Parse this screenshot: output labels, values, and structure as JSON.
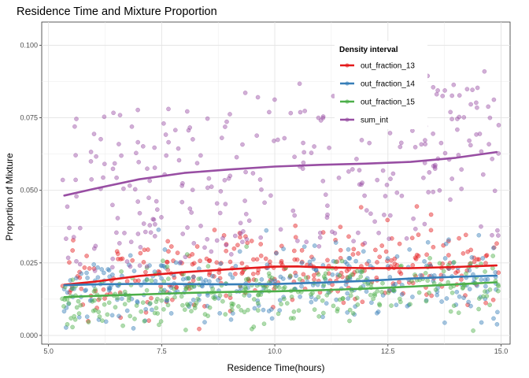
{
  "chart_data": {
    "type": "scatter",
    "title": "Residence Time and Mixture Proportion",
    "xlabel": "Residence Time(hours)",
    "ylabel": "Proportion of Mixture",
    "xlim": [
      4.85,
      15.2
    ],
    "ylim": [
      -0.003,
      0.108
    ],
    "x_ticks": [
      5.0,
      7.5,
      10.0,
      12.5,
      15.0
    ],
    "x_tick_labels": [
      "5.0",
      "7.5",
      "10.0",
      "12.5",
      "15.0"
    ],
    "y_ticks": [
      0.0,
      0.025,
      0.05,
      0.075,
      0.1
    ],
    "y_tick_labels": [
      "0.000",
      "0.025",
      "0.050",
      "0.075",
      "0.100"
    ],
    "grid": true,
    "legend": {
      "title": "Density interval",
      "placement": "top-right"
    },
    "series": [
      {
        "name": "out_fraction_13",
        "color": "#e41a1c",
        "points_mean": [
          [
            5.3,
            0.018
          ],
          [
            7.5,
            0.021
          ],
          [
            10.0,
            0.024
          ],
          [
            12.5,
            0.023
          ],
          [
            15.0,
            0.024
          ]
        ],
        "points_spread": 0.0065,
        "point_count": 300,
        "smooth": [
          [
            5.35,
            0.0175
          ],
          [
            6.0,
            0.0185
          ],
          [
            7.0,
            0.0205
          ],
          [
            8.0,
            0.0218
          ],
          [
            9.0,
            0.0228
          ],
          [
            10.0,
            0.0237
          ],
          [
            10.5,
            0.0238
          ],
          [
            11.0,
            0.0235
          ],
          [
            12.0,
            0.0232
          ],
          [
            13.0,
            0.0232
          ],
          [
            14.0,
            0.0236
          ],
          [
            14.9,
            0.0241
          ]
        ]
      },
      {
        "name": "out_fraction_14",
        "color": "#377eb8",
        "points_mean": [
          [
            5.3,
            0.017
          ],
          [
            10.0,
            0.018
          ],
          [
            15.0,
            0.02
          ]
        ],
        "points_spread": 0.0065,
        "point_count": 300,
        "smooth": [
          [
            5.35,
            0.0173
          ],
          [
            6.0,
            0.0176
          ],
          [
            7.0,
            0.0178
          ],
          [
            8.0,
            0.0177
          ],
          [
            9.0,
            0.0176
          ],
          [
            10.0,
            0.0177
          ],
          [
            11.0,
            0.0182
          ],
          [
            12.0,
            0.0188
          ],
          [
            13.0,
            0.0196
          ],
          [
            14.0,
            0.0202
          ],
          [
            14.9,
            0.0206
          ]
        ]
      },
      {
        "name": "out_fraction_15",
        "color": "#4daf4a",
        "points_mean": [
          [
            5.3,
            0.013
          ],
          [
            10.0,
            0.015
          ],
          [
            15.0,
            0.018
          ]
        ],
        "points_spread": 0.0055,
        "point_count": 300,
        "smooth": [
          [
            5.35,
            0.0132
          ],
          [
            6.0,
            0.0136
          ],
          [
            7.0,
            0.0141
          ],
          [
            8.0,
            0.0146
          ],
          [
            9.0,
            0.015
          ],
          [
            10.0,
            0.0152
          ],
          [
            11.0,
            0.0156
          ],
          [
            12.0,
            0.0161
          ],
          [
            13.0,
            0.0168
          ],
          [
            14.0,
            0.0176
          ],
          [
            14.9,
            0.0183
          ]
        ]
      },
      {
        "name": "sum_int",
        "color": "#984ea3",
        "points_mean": [
          [
            5.3,
            0.048
          ],
          [
            10.0,
            0.058
          ],
          [
            15.0,
            0.063
          ]
        ],
        "points_spread": 0.015,
        "point_count": 300,
        "smooth": [
          [
            5.35,
            0.0482
          ],
          [
            6.0,
            0.0505
          ],
          [
            7.0,
            0.0538
          ],
          [
            8.0,
            0.056
          ],
          [
            9.0,
            0.0572
          ],
          [
            10.0,
            0.0582
          ],
          [
            11.0,
            0.0588
          ],
          [
            12.0,
            0.0592
          ],
          [
            13.0,
            0.0598
          ],
          [
            14.0,
            0.0612
          ],
          [
            14.9,
            0.0632
          ]
        ]
      }
    ]
  }
}
